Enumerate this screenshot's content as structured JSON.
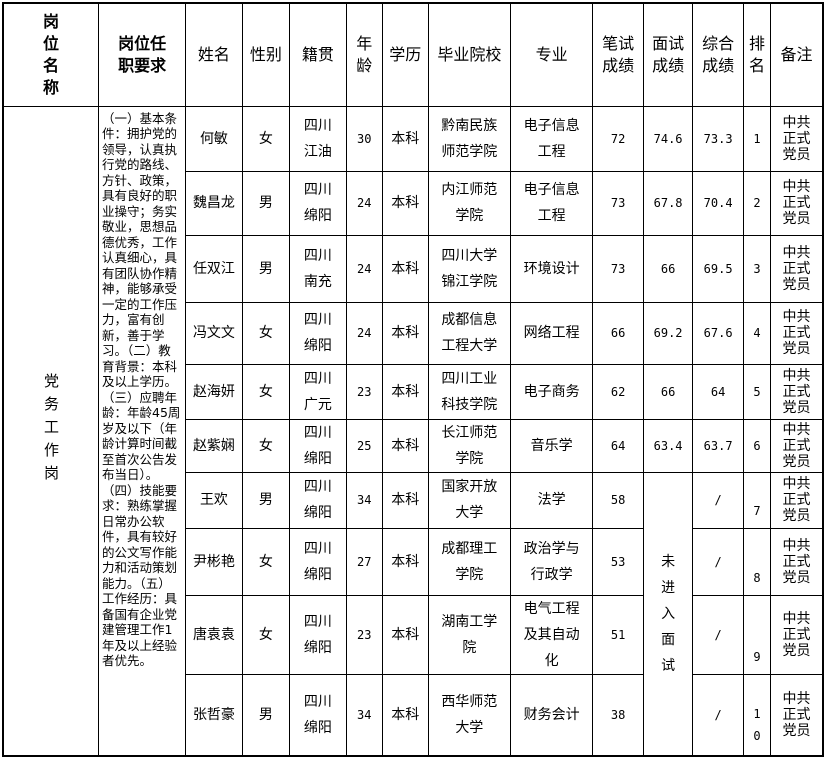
{
  "headers": [
    "岗位名称",
    "岗位任职要求",
    "姓名",
    "性别",
    "籍贯",
    "年龄",
    "学历",
    "毕业院校",
    "专业",
    "笔试成绩",
    "面试成绩",
    "综合成绩",
    "排名",
    "备注"
  ],
  "position": "党务工作岗",
  "requirements": "（一）基本条件：拥护党的领导，认真执行党的路线、方针、政策，具有良好的职业操守；务实敬业，思想品德优秀，工作认真细心，具有团队协作精神，能够承受一定的工作压力，富有创新，善于学习。（二）教育背景：本科及以上学历。（三）应聘年龄：年龄45周岁及以下（年龄计算时间截至首次公告发布当日）。（四）技能要求：熟练掌握日常办公软件，具有较好的公文写作能力和活动策划能力。（五）工作经历：具备国有企业党建管理工作1年及以上经验者优先。",
  "not_interviewed": "未进入面试",
  "rows": [
    {
      "name": "何敏",
      "gender": "女",
      "origin": "四川江油",
      "age": "30",
      "edu": "本科",
      "school": "黔南民族师范学院",
      "major": "电子信息工程",
      "written": "72",
      "interview": "74.6",
      "total": "73.3",
      "rank": "1",
      "note": "中共正式党员"
    },
    {
      "name": "魏昌龙",
      "gender": "男",
      "origin": "四川绵阳",
      "age": "24",
      "edu": "本科",
      "school": "内江师范学院",
      "major": "电子信息工程",
      "written": "73",
      "interview": "67.8",
      "total": "70.4",
      "rank": "2",
      "note": "中共正式党员"
    },
    {
      "name": "任双江",
      "gender": "男",
      "origin": "四川南充",
      "age": "24",
      "edu": "本科",
      "school": "四川大学锦江学院",
      "major": "环境设计",
      "written": "73",
      "interview": "66",
      "total": "69.5",
      "rank": "3",
      "note": "中共正式党员"
    },
    {
      "name": "冯文文",
      "gender": "女",
      "origin": "四川绵阳",
      "age": "24",
      "edu": "本科",
      "school": "成都信息工程大学",
      "major": "网络工程",
      "written": "66",
      "interview": "69.2",
      "total": "67.6",
      "rank": "4",
      "note": "中共正式党员"
    },
    {
      "name": "赵海妍",
      "gender": "女",
      "origin": "四川广元",
      "age": "23",
      "edu": "本科",
      "school": "四川工业科技学院",
      "major": "电子商务",
      "written": "62",
      "interview": "66",
      "total": "64",
      "rank": "5",
      "note": "中共正式党员"
    },
    {
      "name": "赵紫娴",
      "gender": "女",
      "origin": "四川绵阳",
      "age": "25",
      "edu": "本科",
      "school": "长江师范学院",
      "major": "音乐学",
      "written": "64",
      "interview": "63.4",
      "total": "63.7",
      "rank": "6",
      "note": "中共正式党员"
    },
    {
      "name": "王欢",
      "gender": "男",
      "origin": "四川绵阳",
      "age": "34",
      "edu": "本科",
      "school": "国家开放大学",
      "major": "法学",
      "written": "58",
      "interview": "",
      "total": "/",
      "rank": "7",
      "note": "中共正式党员"
    },
    {
      "name": "尹彬艳",
      "gender": "女",
      "origin": "四川绵阳",
      "age": "27",
      "edu": "本科",
      "school": "成都理工学院",
      "major": "政治学与行政学",
      "written": "53",
      "interview": "",
      "total": "/",
      "rank": "8",
      "note": "中共正式党员"
    },
    {
      "name": "唐袁袁",
      "gender": "女",
      "origin": "四川绵阳",
      "age": "23",
      "edu": "本科",
      "school": "湖南工学院",
      "major": "电气工程及其自动化",
      "written": "51",
      "interview": "",
      "total": "/",
      "rank": "9",
      "note": "中共正式党员"
    },
    {
      "name": "张哲豪",
      "gender": "男",
      "origin": "四川绵阳",
      "age": "34",
      "edu": "本科",
      "school": "西华师范大学",
      "major": "财务会计",
      "written": "38",
      "interview": "",
      "total": "/",
      "rank": "10",
      "note": "中共正式党员"
    }
  ]
}
